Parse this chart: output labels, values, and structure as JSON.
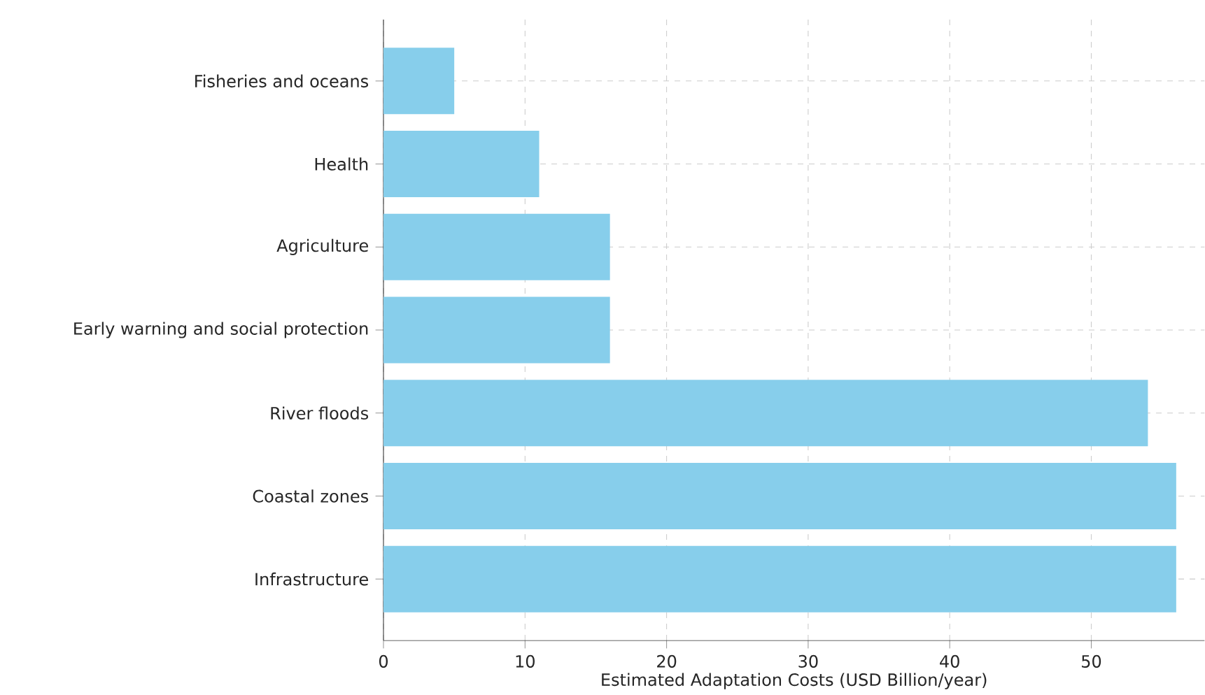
{
  "chart_data": {
    "type": "bar",
    "orientation": "horizontal",
    "xlabel": "Estimated Adaptation Costs (USD Billion/year)",
    "categories": [
      "Fisheries and oceans",
      "Health",
      "Agriculture",
      "Early warning and social protection",
      "River floods",
      "Coastal zones",
      "Infrastructure"
    ],
    "values": [
      5,
      11,
      16,
      16,
      54,
      56,
      56
    ],
    "color": "#87ceeb",
    "xlim": [
      0,
      58
    ],
    "xticks": [
      0,
      10,
      20,
      30,
      40,
      50
    ],
    "grid": true
  }
}
